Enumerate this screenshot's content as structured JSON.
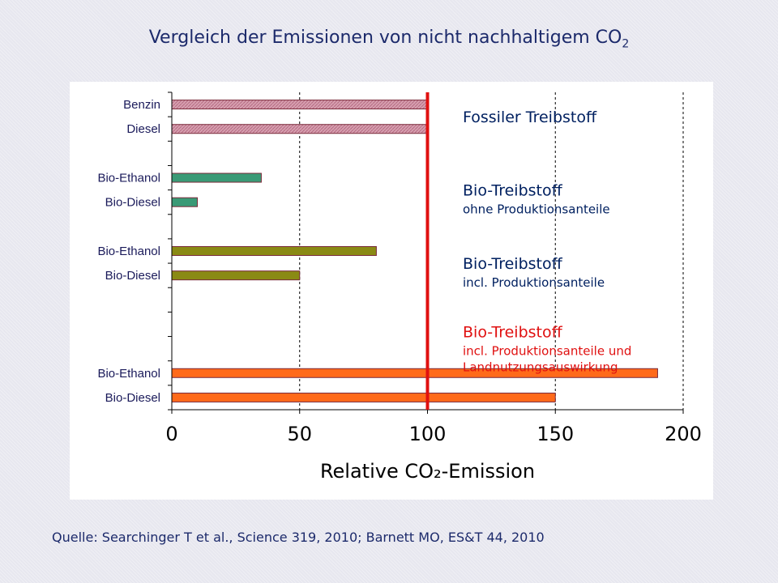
{
  "title": {
    "main": "Vergleich der Emissionen von nicht nachhaltigem CO",
    "sub": "2"
  },
  "source": "Quelle: Searchinger T et al., Science 319, 2010; Barnett MO, ES&T 44, 2010",
  "colors": {
    "fossil": "#d7a0b0",
    "bio_ohne": "#3a9a76",
    "bio_incl": "#8a8a14",
    "bio_land": "#ff6a1a",
    "bar_border": "#7a2a3a",
    "reference_line": "#e01010",
    "text_dark": "#002060",
    "text_red": "#e01010"
  },
  "chart_data": {
    "type": "bar",
    "orientation": "horizontal",
    "xlabel": "Relative CO₂-Emission",
    "xlim": [
      0,
      200
    ],
    "xticks": [
      0,
      50,
      100,
      150,
      200
    ],
    "reference_line": 100,
    "rows": 13,
    "bars": [
      {
        "label": "Benzin",
        "value": 100,
        "group": "fossil",
        "row": 0
      },
      {
        "label": "Diesel",
        "value": 100,
        "group": "fossil",
        "row": 1
      },
      {
        "label": "Bio-Ethanol",
        "value": 35,
        "group": "bio_ohne",
        "row": 3
      },
      {
        "label": "Bio-Diesel",
        "value": 10,
        "group": "bio_ohne",
        "row": 4
      },
      {
        "label": "Bio-Ethanol",
        "value": 80,
        "group": "bio_incl",
        "row": 6
      },
      {
        "label": "Bio-Diesel",
        "value": 50,
        "group": "bio_incl",
        "row": 7
      },
      {
        "label": "Bio-Ethanol",
        "value": 190,
        "group": "bio_land",
        "row": 11
      },
      {
        "label": "Bio-Diesel",
        "value": 150,
        "group": "bio_land",
        "row": 12
      }
    ],
    "annotations": [
      {
        "lines": [
          "Fossiler Treibstoff"
        ],
        "color": "dark",
        "row": 0.5
      },
      {
        "lines": [
          "Bio-Treibstoff",
          "ohne Produktionsanteile"
        ],
        "color": "dark",
        "row": 3.5
      },
      {
        "lines": [
          "Bio-Treibstoff",
          "incl. Produktionsanteile"
        ],
        "color": "dark",
        "row": 6.5
      },
      {
        "lines": [
          "Bio-Treibstoff",
          "incl. Produktionsanteile und",
          "Landnutzungsauswirkung"
        ],
        "color": "red",
        "row": 9.3
      }
    ]
  }
}
